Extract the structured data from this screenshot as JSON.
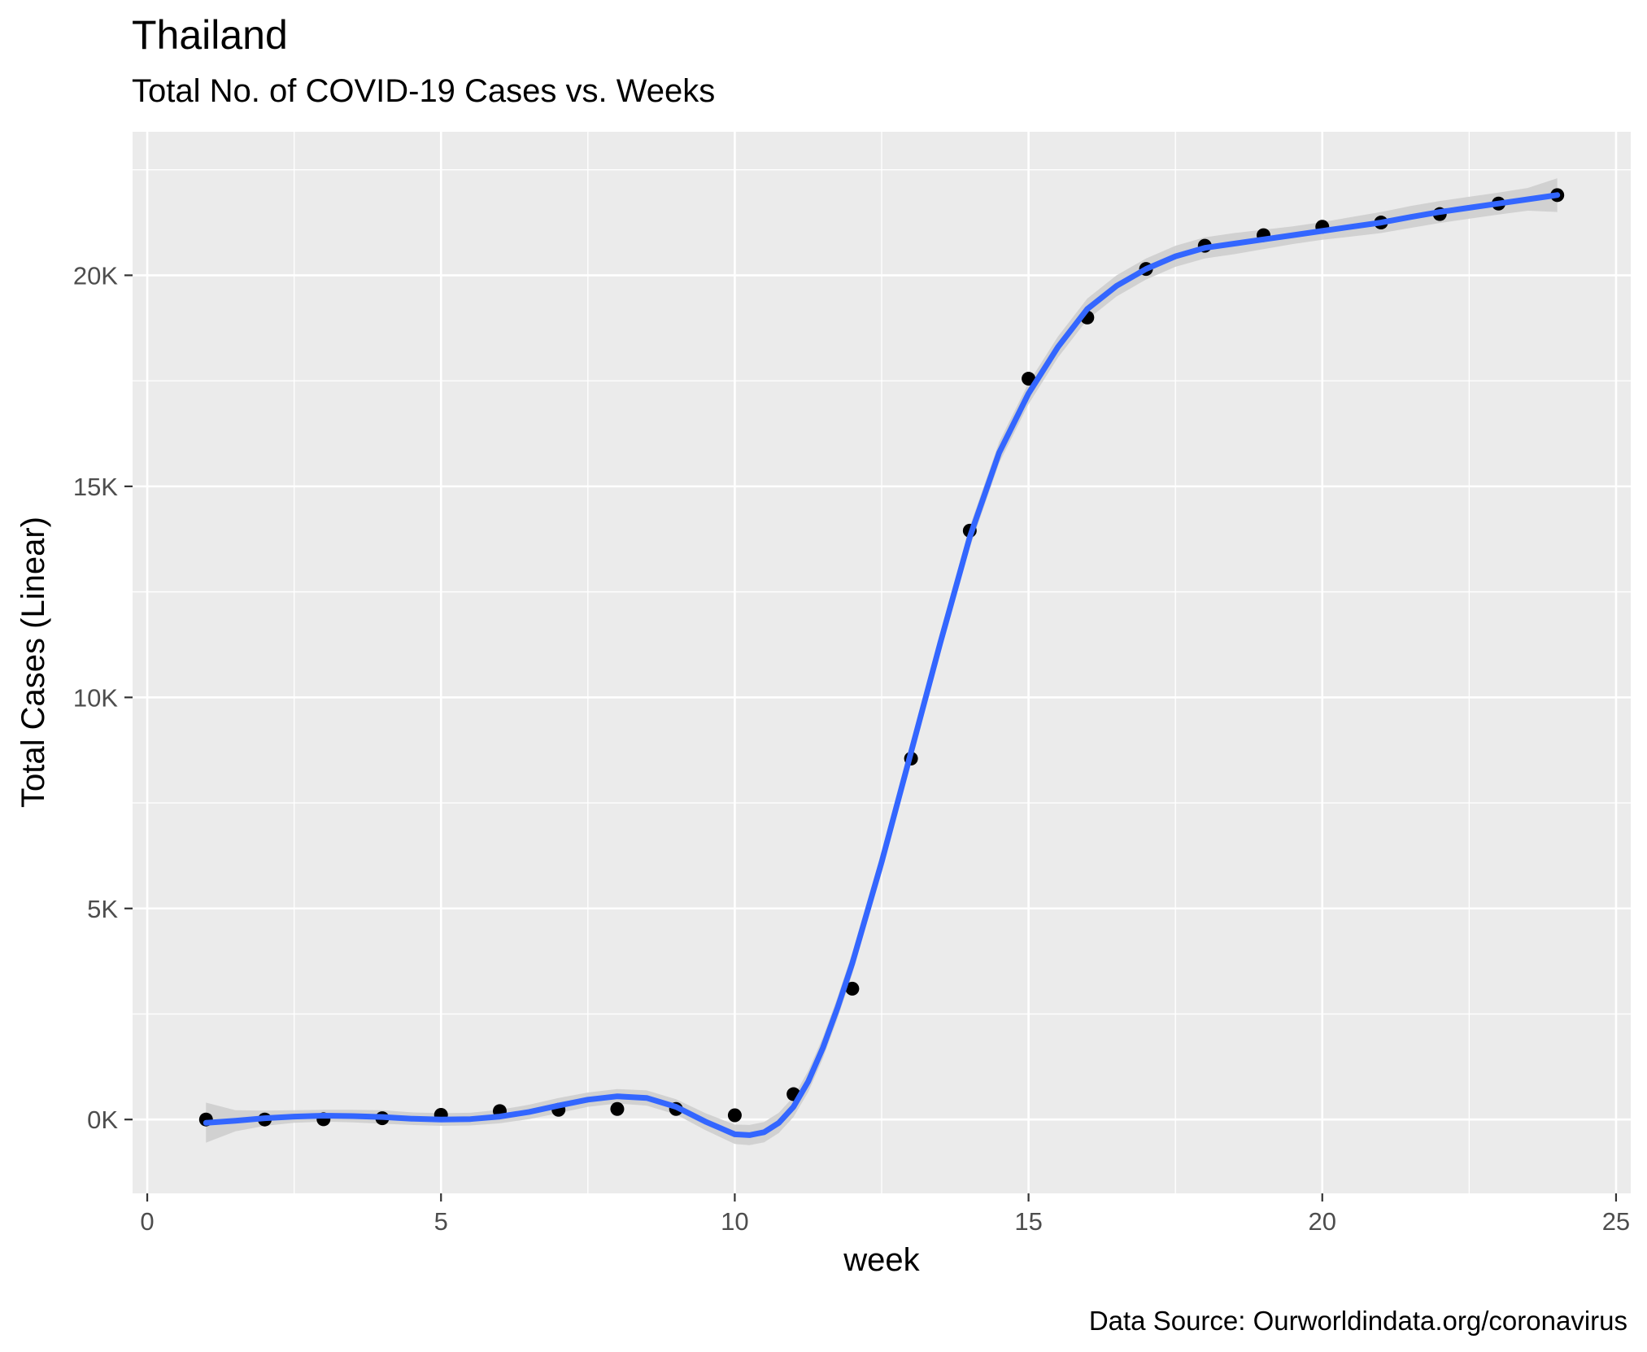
{
  "chart_data": {
    "type": "scatter",
    "title": "Thailand",
    "subtitle": "Total No. of COVID-19 Cases vs. Weeks",
    "caption": "Data Source: Ourworldindata.org/coronavirus",
    "xlabel": "week",
    "ylabel": "Total Cases (Linear)",
    "xlim": [
      -0.25,
      25.25
    ],
    "ylim": [
      -1750,
      23400
    ],
    "x_ticks": [
      0,
      5,
      10,
      15,
      20,
      25
    ],
    "x_tick_labels": [
      "0",
      "5",
      "10",
      "15",
      "20",
      "25"
    ],
    "y_ticks": [
      0,
      5000,
      10000,
      15000,
      20000
    ],
    "y_tick_labels": [
      "0K",
      "5K",
      "10K",
      "15K",
      "20K"
    ],
    "grid": true,
    "legend": "none",
    "points": {
      "x": [
        1,
        2,
        3,
        4,
        5,
        6,
        7,
        8,
        9,
        10,
        11,
        12,
        13,
        14,
        15,
        16,
        17,
        18,
        19,
        20,
        21,
        22,
        23,
        24
      ],
      "y": [
        0,
        0,
        5,
        30,
        110,
        200,
        230,
        250,
        250,
        100,
        600,
        3100,
        8550,
        13950,
        17550,
        19000,
        20150,
        20700,
        20950,
        21150,
        21250,
        21450,
        21700,
        21900
      ]
    },
    "smooth": {
      "x": [
        1,
        1.5,
        2,
        2.5,
        3,
        3.5,
        4,
        4.5,
        5,
        5.5,
        6,
        6.5,
        7,
        7.5,
        8,
        8.5,
        9,
        9.5,
        10,
        10.25,
        10.5,
        10.75,
        11,
        11.25,
        11.5,
        11.75,
        12,
        12.5,
        13,
        13.5,
        14,
        14.5,
        15,
        15.5,
        16,
        16.5,
        17,
        17.5,
        18,
        18.5,
        19,
        19.5,
        20,
        20.5,
        21,
        21.5,
        22,
        22.5,
        23,
        23.5,
        24
      ],
      "y": [
        -80,
        -30,
        30,
        70,
        90,
        80,
        60,
        20,
        0,
        10,
        70,
        180,
        330,
        470,
        550,
        510,
        300,
        -50,
        -350,
        -370,
        -300,
        -80,
        300,
        900,
        1700,
        2650,
        3700,
        6100,
        8700,
        11300,
        13800,
        15800,
        17200,
        18300,
        19200,
        19750,
        20150,
        20450,
        20650,
        20750,
        20850,
        20950,
        21050,
        21150,
        21250,
        21380,
        21500,
        21600,
        21700,
        21800,
        21900
      ],
      "lower": [
        -550,
        -280,
        -150,
        -80,
        -50,
        -70,
        -100,
        -130,
        -150,
        -140,
        -90,
        10,
        150,
        300,
        380,
        330,
        120,
        -250,
        -580,
        -610,
        -540,
        -320,
        60,
        650,
        1450,
        2400,
        3450,
        5850,
        8450,
        11050,
        13550,
        15550,
        16950,
        18050,
        18950,
        19500,
        19900,
        20200,
        20400,
        20500,
        20620,
        20740,
        20840,
        20920,
        21000,
        21120,
        21240,
        21340,
        21440,
        21530,
        21500
      ],
      "upper": [
        400,
        220,
        210,
        220,
        230,
        230,
        220,
        170,
        150,
        160,
        230,
        350,
        510,
        640,
        720,
        690,
        480,
        150,
        -120,
        -130,
        -60,
        160,
        540,
        1150,
        1950,
        2900,
        3950,
        6350,
        8950,
        11550,
        14050,
        16050,
        17450,
        18550,
        19450,
        20000,
        20400,
        20700,
        20900,
        21000,
        21080,
        21160,
        21260,
        21380,
        21500,
        21640,
        21760,
        21860,
        21960,
        22070,
        22300
      ],
      "color": "#3366ff",
      "band_color": "#cccccc"
    },
    "point_color": "#000000",
    "panel_color": "#ebebeb",
    "grid_color": "#ffffff"
  }
}
